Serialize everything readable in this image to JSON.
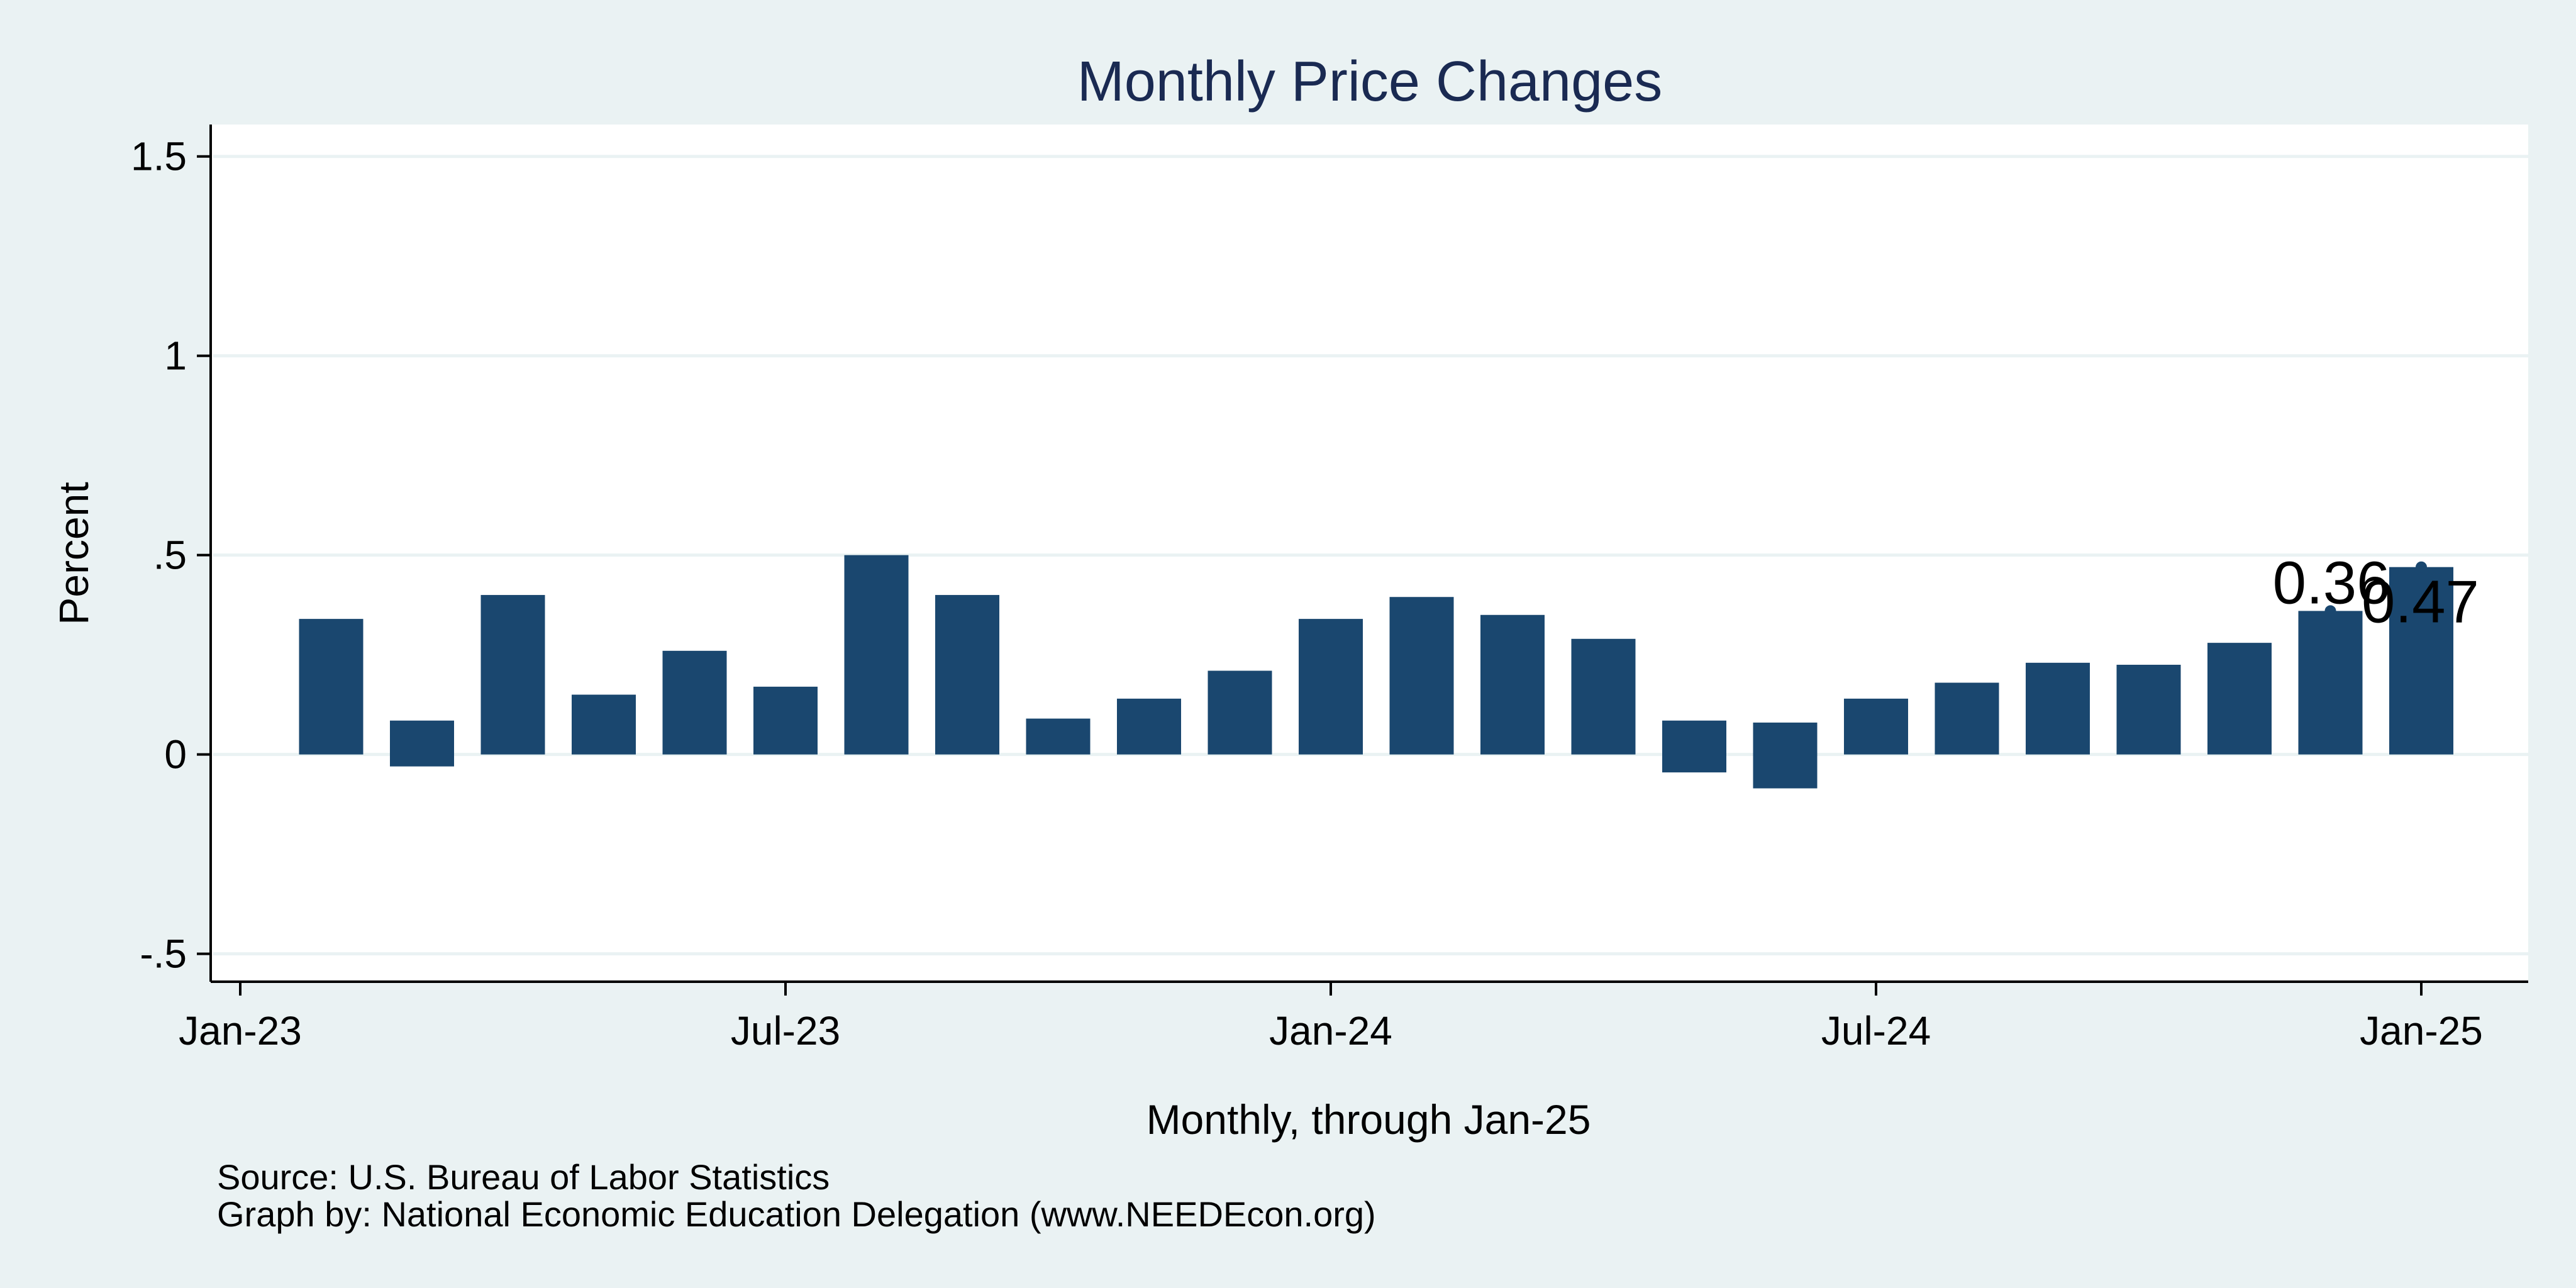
{
  "colors": {
    "background": "#eaf2f3",
    "plot_background": "#ffffff",
    "bar": "#1a476f",
    "title": "#1a2a52",
    "gridline": "#eaf2f3"
  },
  "chart_data": {
    "type": "bar",
    "title": "Monthly Price Changes",
    "xlabel": "Monthly, through Jan-25",
    "ylabel": "Percent",
    "ylim": [
      -0.57,
      1.58
    ],
    "grid": true,
    "y_ticks": [
      {
        "value": -0.5,
        "label": "-.5"
      },
      {
        "value": 0,
        "label": "0"
      },
      {
        "value": 0.5,
        "label": ".5"
      },
      {
        "value": 1,
        "label": "1"
      },
      {
        "value": 1.5,
        "label": "1.5"
      }
    ],
    "x_ticks": [
      {
        "index": 0,
        "label": "Jan-23"
      },
      {
        "index": 6,
        "label": "Jul-23"
      },
      {
        "index": 12,
        "label": "Jan-24"
      },
      {
        "index": 18,
        "label": "Jul-24"
      },
      {
        "index": 24,
        "label": "Jan-25"
      }
    ],
    "series": [
      {
        "bars": [
          {
            "month": "Feb-23",
            "low": 0,
            "high": 0.34
          },
          {
            "month": "Mar-23",
            "low": -0.03,
            "high": 0.085
          },
          {
            "month": "Apr-23",
            "low": 0,
            "high": 0.4
          },
          {
            "month": "May-23",
            "low": 0,
            "high": 0.15
          },
          {
            "month": "Jun-23",
            "low": 0,
            "high": 0.26
          },
          {
            "month": "Jul-23",
            "low": 0,
            "high": 0.17
          },
          {
            "month": "Aug-23",
            "low": 0,
            "high": 0.5
          },
          {
            "month": "Sep-23",
            "low": 0,
            "high": 0.4
          },
          {
            "month": "Oct-23",
            "low": 0,
            "high": 0.09
          },
          {
            "month": "Nov-23",
            "low": 0,
            "high": 0.14
          },
          {
            "month": "Dec-23",
            "low": 0,
            "high": 0.21
          },
          {
            "month": "Jan-24",
            "low": 0,
            "high": 0.34
          },
          {
            "month": "Feb-24",
            "low": 0,
            "high": 0.395
          },
          {
            "month": "Mar-24",
            "low": 0,
            "high": 0.35
          },
          {
            "month": "Apr-24",
            "low": 0,
            "high": 0.29
          },
          {
            "month": "May-24",
            "low": -0.045,
            "high": 0.085
          },
          {
            "month": "Jun-24",
            "low": -0.085,
            "high": 0.08
          },
          {
            "month": "Jul-24",
            "low": 0,
            "high": 0.14
          },
          {
            "month": "Aug-24",
            "low": 0,
            "high": 0.18
          },
          {
            "month": "Sep-24",
            "low": 0,
            "high": 0.23
          },
          {
            "month": "Oct-24",
            "low": 0,
            "high": 0.225
          },
          {
            "month": "Nov-24",
            "low": 0,
            "high": 0.28
          },
          {
            "month": "Dec-24",
            "low": 0,
            "high": 0.36
          },
          {
            "month": "Jan-25",
            "low": 0,
            "high": 0.47
          }
        ]
      }
    ],
    "annotations": [
      {
        "month": "Dec-24",
        "value": 0.36,
        "label": "0.36",
        "placement": "upper-left"
      },
      {
        "month": "Jan-25",
        "value": 0.47,
        "label": "0.47",
        "placement": "lower-right"
      }
    ]
  },
  "footnotes": {
    "source": "Source: U.S. Bureau of Labor Statistics",
    "credit": "Graph by: National Economic Education Delegation (www.NEEDEcon.org)"
  }
}
